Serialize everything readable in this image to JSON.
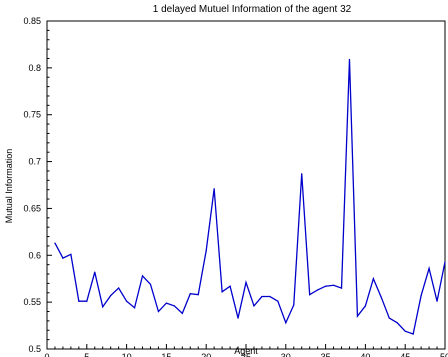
{
  "chart_data": {
    "type": "line",
    "title": "1 delayed Mutuel Information of the agent 32",
    "xlabel": "Agent",
    "ylabel": "Mutual Information",
    "xlim": [
      0,
      50
    ],
    "ylim": [
      0.5,
      0.85
    ],
    "x_ticks": [
      0,
      5,
      10,
      15,
      20,
      25,
      30,
      35,
      40,
      45,
      50
    ],
    "y_ticks": [
      0.5,
      0.55,
      0.6,
      0.65,
      0.7,
      0.75,
      0.8,
      0.85
    ],
    "grid": false,
    "line_color": "#0000cc",
    "series": [
      {
        "x": [
          1,
          2,
          3,
          4,
          5,
          6,
          7,
          8,
          9,
          10,
          11,
          12,
          13,
          14,
          15,
          16,
          17,
          18,
          19,
          20,
          21,
          22,
          23,
          24,
          25,
          26,
          27,
          28,
          29,
          30,
          31,
          32,
          33,
          34,
          35,
          36,
          37,
          38,
          39,
          40,
          41,
          42,
          43,
          44,
          45,
          46,
          47,
          48,
          49,
          50
        ],
        "values": [
          0.613,
          0.597,
          0.601,
          0.551,
          0.551,
          0.582,
          0.545,
          0.557,
          0.565,
          0.551,
          0.544,
          0.578,
          0.569,
          0.54,
          0.549,
          0.546,
          0.538,
          0.559,
          0.558,
          0.605,
          0.671,
          0.561,
          0.567,
          0.533,
          0.571,
          0.546,
          0.556,
          0.556,
          0.551,
          0.528,
          0.547,
          0.687,
          0.558,
          0.563,
          0.567,
          0.568,
          0.565,
          0.809,
          0.535,
          0.546,
          0.575,
          0.555,
          0.533,
          0.528,
          0.519,
          0.516,
          0.557,
          0.586,
          0.551,
          0.593
        ]
      }
    ]
  }
}
